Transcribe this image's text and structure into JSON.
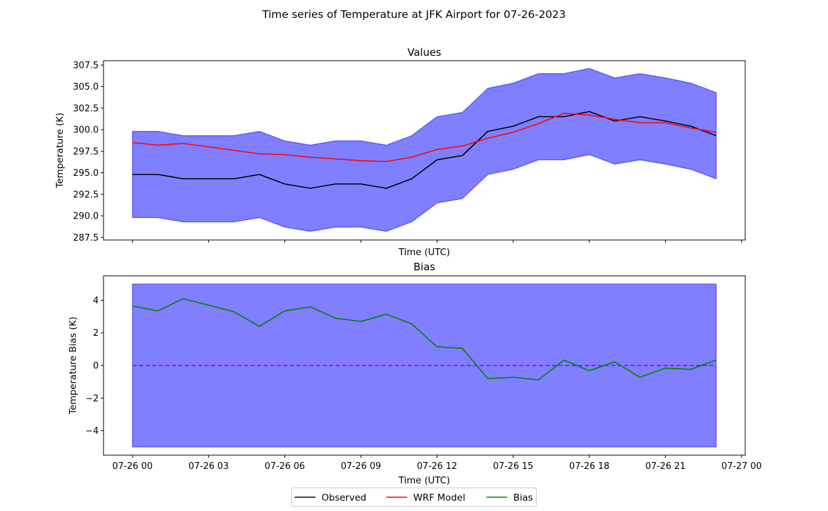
{
  "figure": {
    "suptitle": "Time series of Temperature at JFK Airport for 07-26-2023"
  },
  "legend": {
    "items": [
      {
        "label": "Observed",
        "color": "#000000"
      },
      {
        "label": "WRF Model",
        "color": "#ff0000"
      },
      {
        "label": "Bias",
        "color": "#008000"
      }
    ]
  },
  "chart_data": [
    {
      "type": "line",
      "title": "Values",
      "xlabel": "Time (UTC)",
      "ylabel": "Temperature (K)",
      "xlim": [
        "07-26 00",
        "07-27 00"
      ],
      "ylim": [
        287.2,
        308.0
      ],
      "yticks": [
        287.5,
        290.0,
        292.5,
        295.0,
        297.5,
        300.0,
        302.5,
        305.0,
        307.5
      ],
      "ytick_labels": [
        "287.5",
        "290.0",
        "292.5",
        "295.0",
        "297.5",
        "300.0",
        "302.5",
        "305.0",
        "307.5"
      ],
      "xticks": [
        "07-26 00",
        "07-26 03",
        "07-26 06",
        "07-26 09",
        "07-26 12",
        "07-26 15",
        "07-26 18",
        "07-26 21",
        "07-27 00"
      ],
      "show_xtick_labels": false,
      "x": [
        "07-26 00",
        "07-26 01",
        "07-26 02",
        "07-26 03",
        "07-26 04",
        "07-26 05",
        "07-26 06",
        "07-26 07",
        "07-26 08",
        "07-26 09",
        "07-26 10",
        "07-26 11",
        "07-26 12",
        "07-26 13",
        "07-26 14",
        "07-26 15",
        "07-26 16",
        "07-26 17",
        "07-26 18",
        "07-26 19",
        "07-26 20",
        "07-26 21",
        "07-26 22",
        "07-26 23"
      ],
      "series": [
        {
          "name": "Observed",
          "color": "#000000",
          "values": [
            294.8,
            294.8,
            294.3,
            294.3,
            294.3,
            294.8,
            293.7,
            293.2,
            293.7,
            293.7,
            293.2,
            294.3,
            296.5,
            297.0,
            299.8,
            300.4,
            301.5,
            301.5,
            302.1,
            301.0,
            301.5,
            301.0,
            300.4,
            299.3
          ]
        },
        {
          "name": "WRF Model",
          "color": "#ff0000",
          "values": [
            298.5,
            298.2,
            298.4,
            298.0,
            297.6,
            297.2,
            297.1,
            296.8,
            296.6,
            296.4,
            296.3,
            296.8,
            297.7,
            298.1,
            299.0,
            299.7,
            300.7,
            301.9,
            301.7,
            301.2,
            300.8,
            300.8,
            300.2,
            299.7
          ]
        }
      ],
      "band": {
        "color": "#0000ff",
        "opacity": 0.5,
        "around": "Observed",
        "plus_minus": 5
      }
    },
    {
      "type": "line",
      "title": "Bias",
      "xlabel": "Time (UTC)",
      "ylabel": "Temperature Bias (K)",
      "xlim": [
        "07-26 00",
        "07-27 00"
      ],
      "ylim": [
        -5.5,
        5.5
      ],
      "yticks": [
        -4,
        -2,
        0,
        2,
        4
      ],
      "ytick_labels": [
        "−4",
        "−2",
        "0",
        "2",
        "4"
      ],
      "xticks": [
        "07-26 00",
        "07-26 03",
        "07-26 06",
        "07-26 09",
        "07-26 12",
        "07-26 15",
        "07-26 18",
        "07-26 21",
        "07-27 00"
      ],
      "xtick_labels": [
        "07-26 00",
        "07-26 03",
        "07-26 06",
        "07-26 09",
        "07-26 12",
        "07-26 15",
        "07-26 18",
        "07-26 21",
        "07-27 00"
      ],
      "x": [
        "07-26 00",
        "07-26 01",
        "07-26 02",
        "07-26 03",
        "07-26 04",
        "07-26 05",
        "07-26 06",
        "07-26 07",
        "07-26 08",
        "07-26 09",
        "07-26 10",
        "07-26 11",
        "07-26 12",
        "07-26 13",
        "07-26 14",
        "07-26 15",
        "07-26 16",
        "07-26 17",
        "07-26 18",
        "07-26 19",
        "07-26 20",
        "07-26 21",
        "07-26 22",
        "07-26 23"
      ],
      "series": [
        {
          "name": "Bias",
          "color": "#008000",
          "values": [
            3.65,
            3.35,
            4.1,
            3.7,
            3.3,
            2.4,
            3.35,
            3.6,
            2.9,
            2.7,
            3.15,
            2.55,
            1.15,
            1.05,
            -0.8,
            -0.72,
            -0.88,
            0.33,
            -0.32,
            0.22,
            -0.72,
            -0.16,
            -0.24,
            0.34
          ]
        }
      ],
      "band": {
        "color": "#0000ff",
        "opacity": 0.5,
        "lower": -5,
        "upper": 5
      },
      "reference_line": {
        "y": 0,
        "color": "#9400d3",
        "style": "dashed"
      }
    }
  ]
}
